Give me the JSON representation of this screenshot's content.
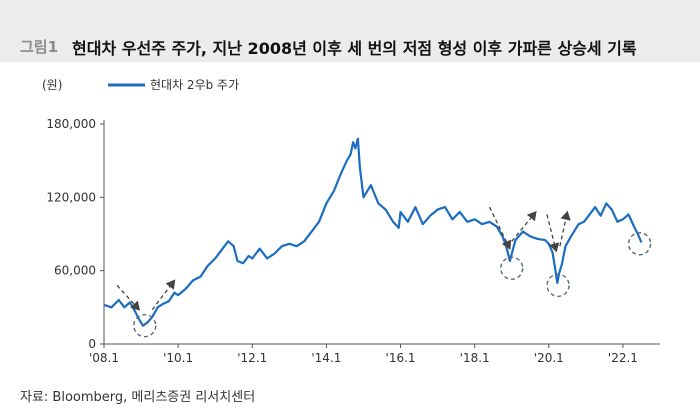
{
  "figure": {
    "number": "그림1",
    "title": "현대차 우선주 주가, 지난 2008년 이후 세 번의 저점 형성 이후 가파른 상승세 기록"
  },
  "source": "자료: Bloomberg, 메리츠증권 리서치센터",
  "colors": {
    "line": "#1a6dc0",
    "annotation": "#444444"
  },
  "chart_data": {
    "type": "line",
    "title": "현대차 우선주 주가, 지난 2008년 이후 세 번의 저점 형성 이후 가파른 상승세 기록",
    "ylabel": "(원)",
    "xlabel": "",
    "ylim": [
      0,
      180000
    ],
    "yticks": [
      0,
      60000,
      120000,
      180000
    ],
    "ytick_labels": [
      "0",
      "60,000",
      "120,000",
      "180,000"
    ],
    "xlim": [
      2008.0,
      2023.0
    ],
    "xticks": [
      2008.0,
      2010.0,
      2012.0,
      2014.0,
      2016.0,
      2018.0,
      2020.0,
      2022.0
    ],
    "xtick_labels": [
      "'08.1",
      "'10.1",
      "'12.1",
      "'14.1",
      "'16.1",
      "'18.1",
      "'20.1",
      "'22.1"
    ],
    "legend": [
      "현대차 2우b 주가"
    ],
    "series": [
      {
        "name": "현대차 2우b 주가",
        "x": [
          2008.0,
          2008.2,
          2008.4,
          2008.55,
          2008.7,
          2008.85,
          2008.95,
          2009.05,
          2009.15,
          2009.3,
          2009.45,
          2009.6,
          2009.75,
          2009.9,
          2010.0,
          2010.2,
          2010.4,
          2010.6,
          2010.8,
          2011.0,
          2011.2,
          2011.35,
          2011.5,
          2011.6,
          2011.75,
          2011.9,
          2012.0,
          2012.2,
          2012.4,
          2012.6,
          2012.8,
          2013.0,
          2013.2,
          2013.4,
          2013.6,
          2013.8,
          2014.0,
          2014.2,
          2014.4,
          2014.55,
          2014.65,
          2014.72,
          2014.78,
          2014.85,
          2014.9,
          2015.0,
          2015.2,
          2015.4,
          2015.6,
          2015.8,
          2015.95,
          2016.0,
          2016.2,
          2016.4,
          2016.6,
          2016.8,
          2017.0,
          2017.2,
          2017.4,
          2017.6,
          2017.8,
          2018.0,
          2018.2,
          2018.4,
          2018.6,
          2018.75,
          2018.85,
          2018.95,
          2019.1,
          2019.3,
          2019.5,
          2019.7,
          2019.9,
          2020.0,
          2020.1,
          2020.18,
          2020.23,
          2020.28,
          2020.35,
          2020.45,
          2020.6,
          2020.8,
          2020.95,
          2021.1,
          2021.25,
          2021.4,
          2021.55,
          2021.7,
          2021.85,
          2022.0,
          2022.15,
          2022.3,
          2022.4,
          2022.5
        ],
        "values": [
          32000,
          30000,
          36000,
          30000,
          34000,
          26000,
          20000,
          15000,
          17000,
          22000,
          30000,
          33000,
          35000,
          42000,
          40000,
          45000,
          52000,
          55000,
          64000,
          70000,
          78000,
          84000,
          80000,
          68000,
          66000,
          72000,
          70000,
          78000,
          70000,
          74000,
          80000,
          82000,
          80000,
          84000,
          92000,
          100000,
          115000,
          125000,
          140000,
          150000,
          155000,
          165000,
          160000,
          168000,
          145000,
          120000,
          130000,
          115000,
          110000,
          100000,
          95000,
          108000,
          100000,
          112000,
          98000,
          105000,
          110000,
          112000,
          102000,
          108000,
          100000,
          102000,
          98000,
          100000,
          96000,
          88000,
          80000,
          68000,
          85000,
          92000,
          88000,
          86000,
          85000,
          82000,
          75000,
          60000,
          50000,
          58000,
          65000,
          80000,
          88000,
          98000,
          100000,
          106000,
          112000,
          105000,
          115000,
          110000,
          100000,
          102000,
          106000,
          96000,
          90000,
          83000
        ]
      }
    ],
    "annotations": [
      {
        "type": "circle",
        "x": 2009.1,
        "y": 15000
      },
      {
        "type": "circle",
        "x": 2019.0,
        "y": 62000
      },
      {
        "type": "circle",
        "x": 2020.25,
        "y": 48000
      },
      {
        "type": "circle",
        "x": 2022.45,
        "y": 82000
      },
      {
        "type": "dashed-arrow",
        "from": [
          2008.35,
          48000
        ],
        "to": [
          2008.95,
          28000
        ]
      },
      {
        "type": "dashed-arrow",
        "from": [
          2009.3,
          28000
        ],
        "to": [
          2009.9,
          52000
        ]
      },
      {
        "type": "dashed-arrow",
        "from": [
          2018.4,
          112000
        ],
        "to": [
          2018.95,
          78000
        ]
      },
      {
        "type": "dashed-arrow",
        "from": [
          2019.0,
          84000
        ],
        "to": [
          2019.65,
          108000
        ]
      },
      {
        "type": "dashed-arrow",
        "from": [
          2019.95,
          106000
        ],
        "to": [
          2020.2,
          76000
        ]
      },
      {
        "type": "dashed-arrow",
        "from": [
          2020.3,
          80000
        ],
        "to": [
          2020.5,
          108000
        ]
      }
    ]
  }
}
